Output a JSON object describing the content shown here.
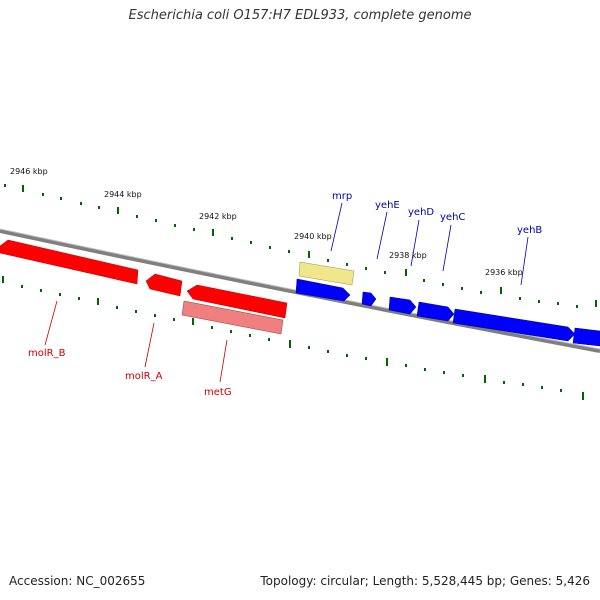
{
  "title": "Escherichia coli O157:H7 EDL933, complete genome",
  "footer": {
    "accession": "Accession: NC_002655",
    "summary": "Topology: circular; Length: 5,528,445 bp; Genes: 5,426"
  },
  "ticks": [
    {
      "label": "2946 kbp"
    },
    {
      "label": "2944 kbp"
    },
    {
      "label": "2942 kbp"
    },
    {
      "label": "2940 kbp"
    },
    {
      "label": "2938 kbp"
    },
    {
      "label": "2936 kbp"
    }
  ],
  "genes": [
    {
      "name": "molR_B",
      "color": "#ff0000"
    },
    {
      "name": "molR_A",
      "color": "#ff0000"
    },
    {
      "name": "metG",
      "color": "#f08080"
    },
    {
      "name": "mrp",
      "color": "#f0e68c"
    },
    {
      "name": "yehE",
      "color": "#0000ff"
    },
    {
      "name": "yehD",
      "color": "#0000ff"
    },
    {
      "name": "yehC",
      "color": "#0000ff"
    },
    {
      "name": "yehB",
      "color": "#0000ff"
    }
  ],
  "colors": {
    "backbone": "#808080",
    "tick": "#006400",
    "reverse_label": "#cc0000",
    "forward_label": "#0000aa"
  }
}
